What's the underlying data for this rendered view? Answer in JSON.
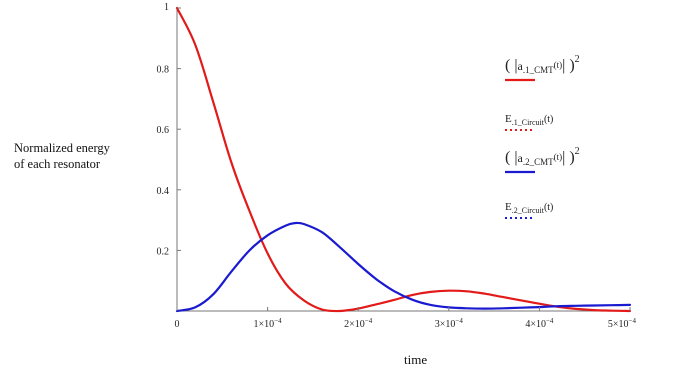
{
  "chart_data": {
    "type": "line",
    "xlabel": "time",
    "ylabel_lines": [
      "Normalized energy",
      "of each resonator"
    ],
    "xlim": [
      0,
      0.0005
    ],
    "ylim": [
      0,
      1
    ],
    "x_ticks": [
      {
        "value": 0,
        "base": "0",
        "exp": ""
      },
      {
        "value": 0.0001,
        "base": "1×10",
        "exp": "−4"
      },
      {
        "value": 0.0002,
        "base": "2×10",
        "exp": "−4"
      },
      {
        "value": 0.0003,
        "base": "3×10",
        "exp": "−4"
      },
      {
        "value": 0.0004,
        "base": "4×10",
        "exp": "−4"
      },
      {
        "value": 0.0005,
        "base": "5×10",
        "exp": "−4"
      }
    ],
    "y_ticks": [
      {
        "value": 1,
        "label": "1"
      },
      {
        "value": 0.8,
        "label": "0.8"
      },
      {
        "value": 0.6,
        "label": "0.6"
      },
      {
        "value": 0.4,
        "label": "0.4"
      },
      {
        "value": 0.2,
        "label": "0.2"
      }
    ],
    "grid": false,
    "legend_position": "right",
    "series": [
      {
        "legend_main": "a",
        "legend_sub": ".1_CMT",
        "legend_arg": "(t)",
        "color": "#e21a1a",
        "style": "solid",
        "x": [
          0,
          2e-05,
          4e-05,
          6e-05,
          8e-05,
          0.0001,
          0.00012,
          0.00014,
          0.00016,
          0.00018,
          0.0002,
          0.00022,
          0.00024,
          0.00026,
          0.00028,
          0.0003,
          0.00032,
          0.00034,
          0.00036,
          0.00038,
          0.0004,
          0.00042,
          0.00044,
          0.00046,
          0.00048,
          0.0005
        ],
        "y": [
          1.0,
          0.88,
          0.69,
          0.49,
          0.33,
          0.19,
          0.09,
          0.035,
          0.005,
          0.0,
          0.008,
          0.022,
          0.037,
          0.053,
          0.063,
          0.067,
          0.065,
          0.057,
          0.046,
          0.035,
          0.024,
          0.014,
          0.007,
          0.003,
          0.001,
          0.0
        ]
      },
      {
        "legend_main": "E",
        "legend_sub": ".1_Circuit",
        "legend_arg": "(t)",
        "color": "#e21a1a",
        "style": "dotted"
      },
      {
        "legend_main": "a",
        "legend_sub": ".2_CMT",
        "legend_arg": "(t)",
        "color": "#1a1ad0",
        "style": "solid",
        "x": [
          0,
          2e-05,
          4e-05,
          6e-05,
          8e-05,
          0.0001,
          0.00012,
          0.00013,
          0.00014,
          0.00016,
          0.00018,
          0.0002,
          0.00022,
          0.00024,
          0.00026,
          0.00028,
          0.0003,
          0.00032,
          0.00034,
          0.00036,
          0.00038,
          0.0004,
          0.00042,
          0.00044,
          0.00046,
          0.00048,
          0.0005
        ],
        "y": [
          0.0,
          0.012,
          0.055,
          0.13,
          0.2,
          0.25,
          0.282,
          0.29,
          0.287,
          0.26,
          0.21,
          0.155,
          0.105,
          0.065,
          0.037,
          0.02,
          0.012,
          0.009,
          0.008,
          0.009,
          0.011,
          0.013,
          0.016,
          0.017,
          0.018,
          0.019,
          0.02
        ]
      },
      {
        "legend_main": "E",
        "legend_sub": ".2_Circuit",
        "legend_arg": "(t)",
        "color": "#1a1ad0",
        "style": "dotted"
      }
    ]
  }
}
